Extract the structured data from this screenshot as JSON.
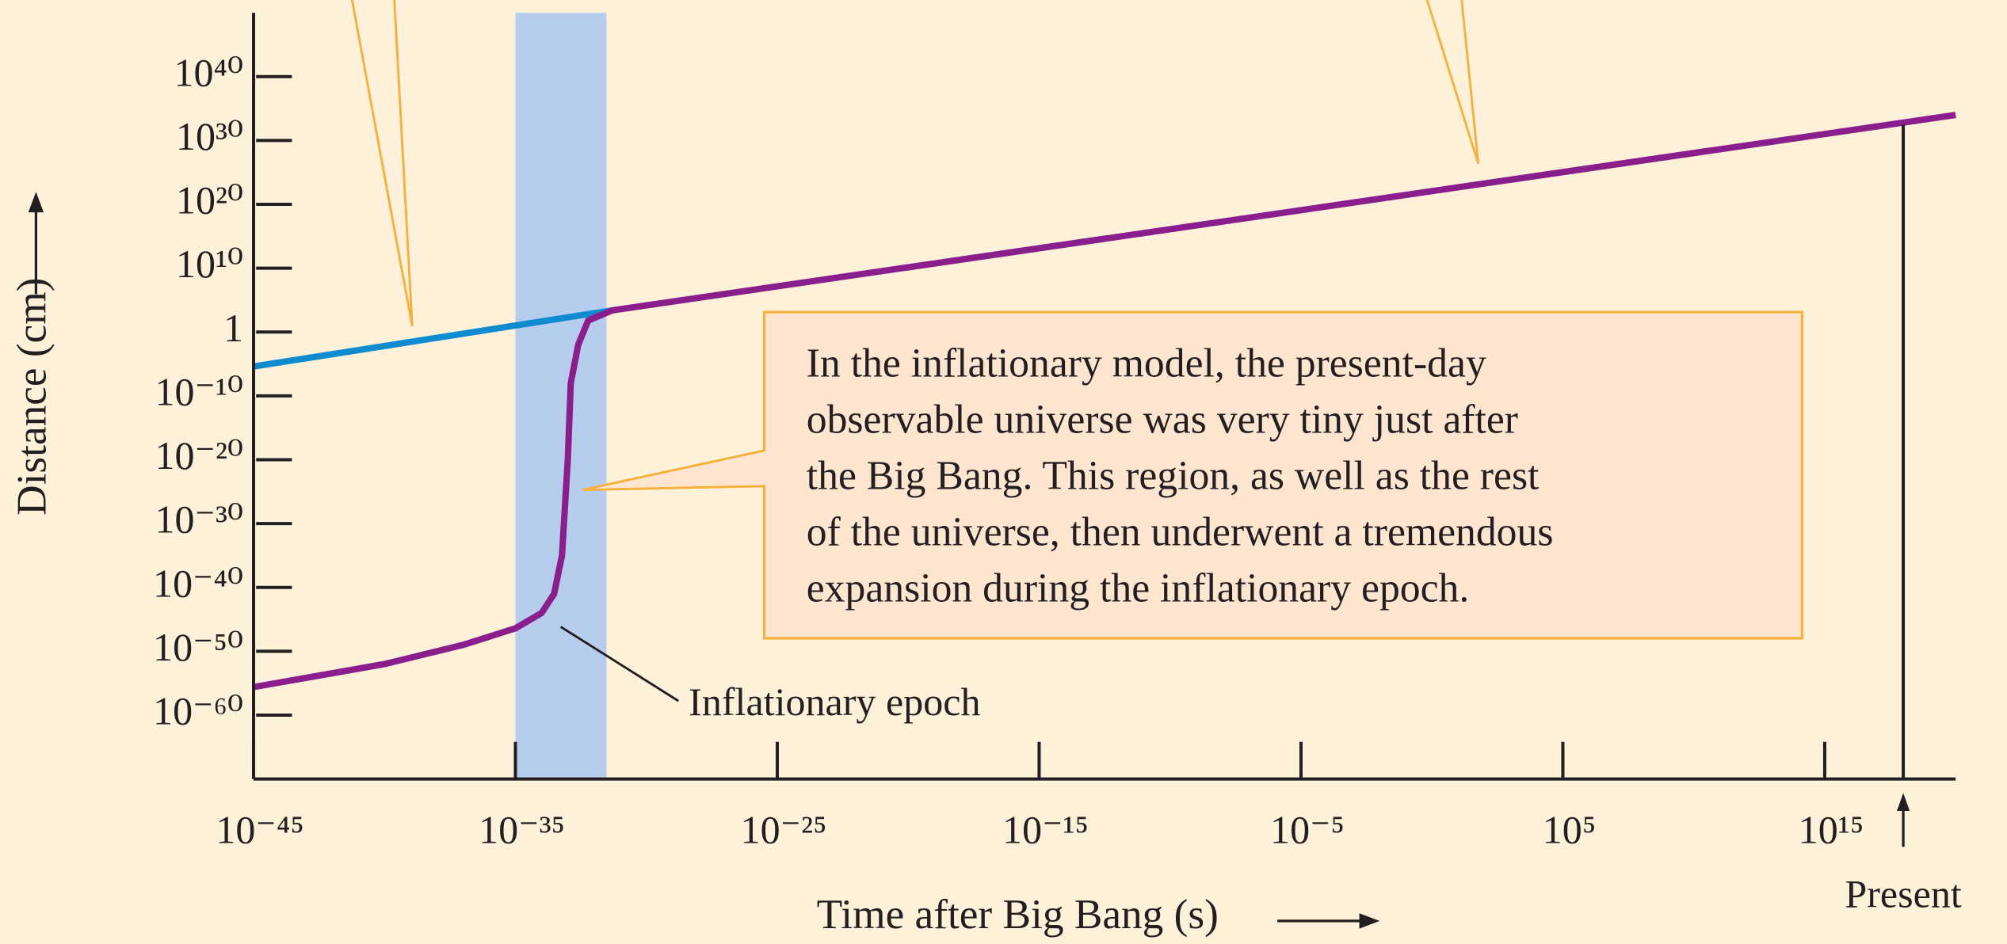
{
  "chart_data": {
    "type": "line",
    "xlabel": "Time after Big Bang (s)",
    "ylabel": "Distance (cm)",
    "xscale": "log",
    "yscale": "log",
    "xlim": [
      1e-45,
      1e+20
    ],
    "ylim": [
      1e-70,
      1e+50
    ],
    "xticks": [
      {
        "value": 1e-45,
        "label": "10⁻⁴⁵"
      },
      {
        "value": 1e-35,
        "label": "10⁻³⁵"
      },
      {
        "value": 1e-25,
        "label": "10⁻²⁵"
      },
      {
        "value": 1e-15,
        "label": "10⁻¹⁵"
      },
      {
        "value": 1e-05,
        "label": "10⁻⁵"
      },
      {
        "value": 100000.0,
        "label": "10⁵"
      },
      {
        "value": 1000000000000000.0,
        "label": "10¹⁵"
      }
    ],
    "yticks": [
      {
        "value": 1e+40,
        "label": "10⁴⁰"
      },
      {
        "value": 1e+30,
        "label": "10³⁰"
      },
      {
        "value": 1e+20,
        "label": "10²⁰"
      },
      {
        "value": 10000000000.0,
        "label": "10¹⁰"
      },
      1,
      {
        "value": 1e-10,
        "label": "10⁻¹⁰"
      },
      {
        "value": 1e-20,
        "label": "10⁻²⁰"
      },
      {
        "value": 1e-30,
        "label": "10⁻³⁰"
      },
      {
        "value": 1e-40,
        "label": "10⁻⁴⁰"
      },
      {
        "value": 1e-50,
        "label": "10⁻⁵⁰"
      },
      {
        "value": 1e-60,
        "label": "10⁻⁶⁰"
      }
    ],
    "series": [
      {
        "color": "#0f8bd0",
        "x": [
          1e-45,
          5e-32
        ],
        "values": [
          4e-06,
          2500
        ]
      },
      {
        "color": "#8a1e8c",
        "x": [
          1e-45,
          1e-40,
          1e-37,
          1e-35,
          1e-34,
          3e-34,
          6e-34,
          1e-33,
          1.3e-33,
          2.5e-33,
          6e-33,
          5e-32,
          1e+20
        ],
        "values": [
          2.5e-56,
          1e-52,
          1e-49,
          4e-47,
          1e-44,
          1e-41,
          1e-35,
          1e-20,
          1e-08,
          0.01,
          63,
          2500,
          1e+34
        ]
      }
    ],
    "shaded_region": {
      "xlim": [
        1e-35,
        3e-32
      ],
      "color": "#b7cdee",
      "label": "Inflationary epoch"
    },
    "present": {
      "x": 1e+18,
      "y": 3e+32,
      "label": "Present"
    },
    "callout": [
      "In the inflationary model, the present-day",
      "observable universe was very tiny just after",
      "the Big Bang. This region, as well as the rest",
      "of the universe, then underwent a tremendous",
      "expansion during the inflationary epoch."
    ]
  }
}
